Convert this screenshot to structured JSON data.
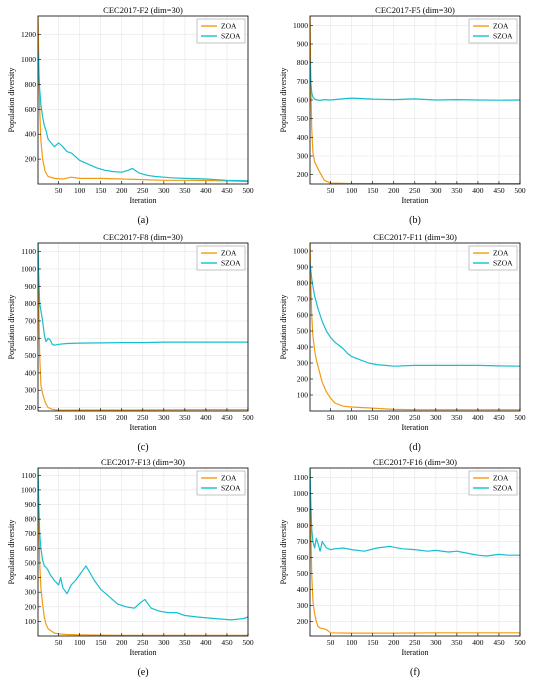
{
  "figure": {
    "colors": {
      "ZOA": "#f39c12",
      "SZOA": "#17becf",
      "grid": "#e6e6e6",
      "axis": "#000000"
    },
    "x_ticks": [
      50,
      100,
      150,
      200,
      250,
      300,
      350,
      400,
      450,
      500
    ],
    "xlabel": "Iteration",
    "ylabel": "Population diversity"
  },
  "chart_data": [
    {
      "type": "line",
      "title": "CEC2017-F2 (dim=30)",
      "panel_label": "(a)",
      "xlim": [
        1,
        500
      ],
      "ylim": [
        0,
        1350
      ],
      "y_ticks": [
        200,
        400,
        600,
        800,
        1000,
        1200
      ],
      "legend": "top-right",
      "grid": true,
      "series": [
        {
          "name": "ZOA",
          "x": [
            1,
            3,
            5,
            8,
            12,
            18,
            25,
            40,
            60,
            80,
            100,
            150,
            200,
            250,
            300,
            350,
            400,
            450,
            500
          ],
          "values": [
            1340,
            1000,
            600,
            350,
            200,
            100,
            60,
            45,
            40,
            55,
            45,
            45,
            40,
            35,
            30,
            30,
            28,
            25,
            20
          ]
        },
        {
          "name": "SZOA",
          "x": [
            1,
            3,
            5,
            8,
            12,
            16,
            20,
            25,
            30,
            40,
            50,
            60,
            70,
            80,
            90,
            100,
            120,
            140,
            160,
            180,
            200,
            215,
            225,
            240,
            260,
            280,
            300,
            320,
            350,
            400,
            450,
            500
          ],
          "values": [
            1080,
            900,
            760,
            640,
            540,
            470,
            430,
            360,
            340,
            300,
            330,
            300,
            260,
            250,
            220,
            190,
            160,
            130,
            110,
            100,
            95,
            110,
            125,
            90,
            70,
            60,
            55,
            50,
            45,
            40,
            30,
            25
          ]
        }
      ]
    },
    {
      "type": "line",
      "title": "CEC2017-F5 (dim=30)",
      "panel_label": "(b)",
      "xlim": [
        1,
        500
      ],
      "ylim": [
        150,
        1050
      ],
      "y_ticks": [
        200,
        300,
        400,
        500,
        600,
        700,
        800,
        900,
        1000
      ],
      "legend": "top-right",
      "grid": true,
      "series": [
        {
          "name": "ZOA",
          "x": [
            1,
            3,
            5,
            8,
            12,
            18,
            25,
            35,
            50,
            100,
            200,
            300,
            400,
            500
          ],
          "values": [
            1050,
            700,
            450,
            320,
            270,
            240,
            210,
            170,
            155,
            152,
            152,
            152,
            152,
            152
          ]
        },
        {
          "name": "SZOA",
          "x": [
            1,
            3,
            5,
            8,
            12,
            18,
            25,
            35,
            50,
            70,
            100,
            150,
            200,
            250,
            300,
            350,
            400,
            450,
            500
          ],
          "values": [
            830,
            700,
            640,
            615,
            605,
            600,
            598,
            602,
            600,
            605,
            610,
            605,
            602,
            606,
            600,
            602,
            600,
            599,
            600
          ]
        }
      ]
    },
    {
      "type": "line",
      "title": "CEC2017-F8 (dim=30)",
      "panel_label": "(c)",
      "xlim": [
        1,
        500
      ],
      "ylim": [
        180,
        1150
      ],
      "y_ticks": [
        200,
        300,
        400,
        500,
        600,
        700,
        800,
        900,
        1000,
        1100
      ],
      "legend": "top-right",
      "grid": true,
      "series": [
        {
          "name": "ZOA",
          "x": [
            1,
            3,
            5,
            8,
            12,
            18,
            25,
            35,
            50,
            70,
            100,
            200,
            300,
            400,
            500
          ],
          "values": [
            1150,
            800,
            500,
            330,
            280,
            230,
            200,
            190,
            185,
            185,
            186,
            186,
            187,
            188,
            188
          ]
        },
        {
          "name": "SZOA",
          "x": [
            1,
            3,
            5,
            8,
            12,
            16,
            20,
            25,
            30,
            35,
            40,
            50,
            70,
            100,
            150,
            200,
            250,
            300,
            350,
            400,
            450,
            500
          ],
          "values": [
            1150,
            950,
            800,
            760,
            700,
            620,
            580,
            600,
            590,
            565,
            560,
            565,
            570,
            572,
            573,
            575,
            575,
            578,
            578,
            578,
            578,
            578
          ]
        }
      ]
    },
    {
      "type": "line",
      "title": "CEC2017-F11 (dim=30)",
      "panel_label": "(d)",
      "xlim": [
        1,
        500
      ],
      "ylim": [
        0,
        1050
      ],
      "y_ticks": [
        100,
        200,
        300,
        400,
        500,
        600,
        700,
        800,
        900,
        1000
      ],
      "legend": "top-right",
      "grid": true,
      "series": [
        {
          "name": "ZOA",
          "x": [
            1,
            3,
            5,
            8,
            12,
            16,
            20,
            25,
            30,
            40,
            50,
            60,
            80,
            100,
            150,
            200,
            250,
            300,
            400,
            500
          ],
          "values": [
            1050,
            800,
            600,
            470,
            380,
            320,
            280,
            230,
            180,
            120,
            80,
            50,
            30,
            25,
            18,
            10,
            8,
            8,
            8,
            8
          ]
        },
        {
          "name": "SZOA",
          "x": [
            1,
            3,
            5,
            8,
            12,
            16,
            20,
            25,
            30,
            40,
            50,
            60,
            70,
            80,
            90,
            100,
            120,
            140,
            160,
            180,
            200,
            250,
            300,
            400,
            450,
            500
          ],
          "values": [
            930,
            880,
            830,
            780,
            720,
            680,
            640,
            600,
            560,
            500,
            460,
            430,
            410,
            390,
            360,
            340,
            320,
            300,
            290,
            285,
            280,
            285,
            285,
            285,
            282,
            280
          ]
        }
      ]
    },
    {
      "type": "line",
      "title": "CEC2017-F13 (dim=30)",
      "panel_label": "(e)",
      "xlim": [
        1,
        500
      ],
      "ylim": [
        0,
        1150
      ],
      "y_ticks": [
        100,
        200,
        300,
        400,
        500,
        600,
        700,
        800,
        900,
        1000,
        1100
      ],
      "legend": "top-right",
      "grid": true,
      "series": [
        {
          "name": "ZOA",
          "x": [
            1,
            3,
            5,
            8,
            12,
            16,
            20,
            25,
            30,
            40,
            50,
            70,
            100,
            200,
            300,
            400,
            500
          ],
          "values": [
            1140,
            800,
            500,
            330,
            220,
            130,
            80,
            50,
            40,
            20,
            15,
            10,
            8,
            5,
            5,
            5,
            5
          ]
        },
        {
          "name": "SZOA",
          "x": [
            1,
            3,
            5,
            8,
            12,
            16,
            20,
            25,
            30,
            40,
            50,
            55,
            60,
            70,
            80,
            90,
            100,
            110,
            115,
            125,
            135,
            150,
            170,
            190,
            210,
            230,
            245,
            255,
            270,
            290,
            310,
            330,
            350,
            380,
            420,
            460,
            490,
            500
          ],
          "values": [
            1150,
            900,
            700,
            600,
            520,
            480,
            470,
            450,
            420,
            380,
            350,
            400,
            330,
            290,
            350,
            380,
            420,
            460,
            480,
            430,
            380,
            320,
            270,
            220,
            200,
            190,
            230,
            250,
            190,
            170,
            160,
            160,
            140,
            130,
            120,
            110,
            120,
            130
          ]
        }
      ]
    },
    {
      "type": "line",
      "title": "CEC2017-F16 (dim=30)",
      "panel_label": "(f)",
      "xlim": [
        1,
        500
      ],
      "ylim": [
        110,
        1160
      ],
      "y_ticks": [
        200,
        300,
        400,
        500,
        600,
        700,
        800,
        900,
        1000,
        1100
      ],
      "legend": "top-right",
      "grid": true,
      "series": [
        {
          "name": "ZOA",
          "x": [
            1,
            3,
            5,
            8,
            12,
            16,
            20,
            25,
            30,
            40,
            50,
            100,
            200,
            300,
            400,
            500
          ],
          "values": [
            1160,
            800,
            500,
            330,
            250,
            200,
            170,
            160,
            158,
            150,
            130,
            128,
            128,
            130,
            130,
            130
          ]
        },
        {
          "name": "SZOA",
          "x": [
            1,
            3,
            5,
            8,
            12,
            16,
            20,
            25,
            30,
            40,
            50,
            60,
            80,
            100,
            130,
            160,
            190,
            200,
            220,
            250,
            280,
            300,
            330,
            350,
            380,
            400,
            420,
            450,
            470,
            500
          ],
          "values": [
            1160,
            950,
            780,
            700,
            660,
            720,
            690,
            640,
            700,
            660,
            650,
            655,
            660,
            650,
            640,
            660,
            670,
            665,
            655,
            650,
            640,
            645,
            635,
            640,
            625,
            615,
            610,
            620,
            615,
            615
          ]
        }
      ]
    }
  ]
}
